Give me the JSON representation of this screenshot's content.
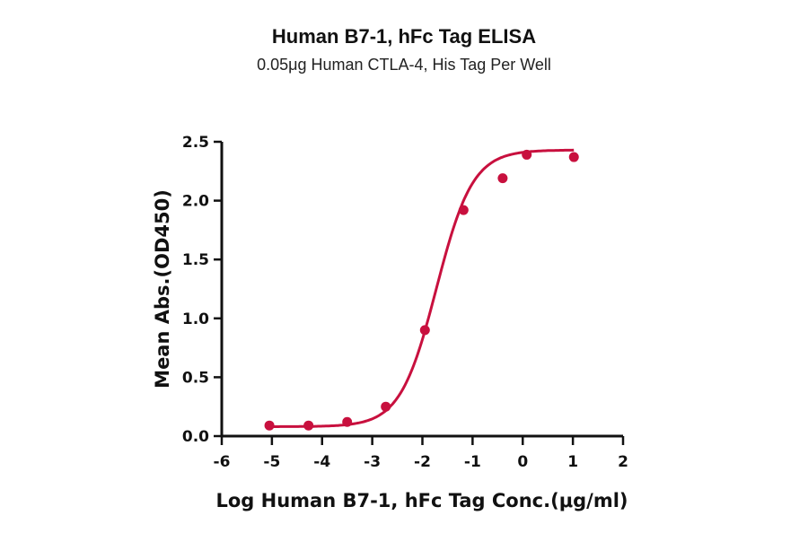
{
  "chart_data": {
    "type": "scatter",
    "title": "Human B7-1, hFc Tag ELISA",
    "subtitle": "0.05μg Human CTLA-4, His Tag Per Well",
    "xlabel": "Log Human B7-1, hFc Tag Conc.(μg/ml)",
    "ylabel": "Mean Abs.(OD450)",
    "xlim": [
      -6,
      2
    ],
    "ylim": [
      0,
      2.5
    ],
    "x_ticks": [
      -6,
      -5,
      -4,
      -3,
      -2,
      -1,
      0,
      1,
      2
    ],
    "x_tick_labels": [
      "-6",
      "-5",
      "-4",
      "-3",
      "-2",
      "-1",
      "0",
      "1",
      "2"
    ],
    "y_ticks": [
      0,
      0.5,
      1.0,
      1.5,
      2.0,
      2.5
    ],
    "y_tick_labels": [
      "0.0",
      "0.5",
      "1.0",
      "1.5",
      "2.0",
      "2.5"
    ],
    "grid": false,
    "legend": null,
    "series": [
      {
        "name": "Human B7-1, hFc Tag",
        "color": "#C8103E",
        "marker": "circle",
        "fit": "4PL sigmoidal curve",
        "x": [
          -5.05,
          -4.27,
          -3.5,
          -2.73,
          -1.95,
          -1.18,
          -0.4,
          0.08,
          1.02
        ],
        "y": [
          0.09,
          0.09,
          0.12,
          0.25,
          0.9,
          1.92,
          2.19,
          2.39,
          2.37
        ]
      }
    ],
    "fit_params": {
      "bottom": 0.08,
      "top": 2.43,
      "logEC50": -1.72,
      "hill": 1.2
    }
  }
}
